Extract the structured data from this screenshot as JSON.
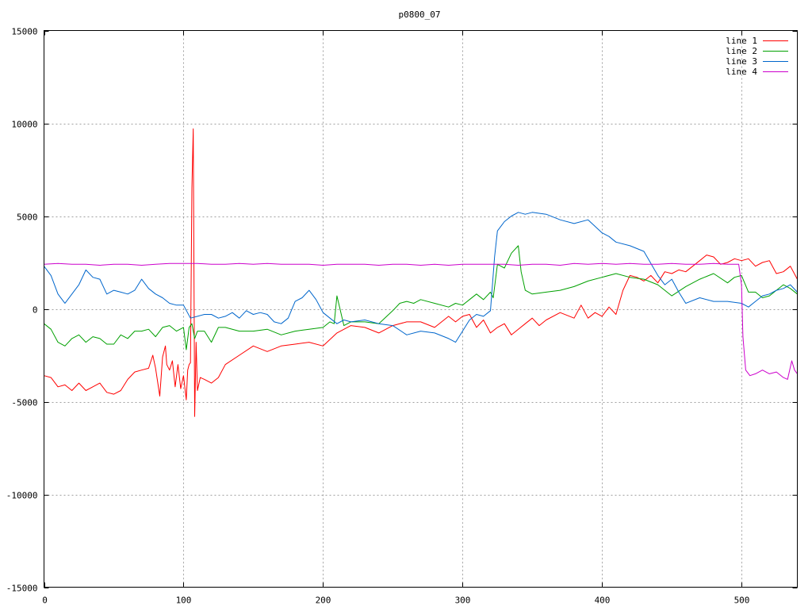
{
  "chart_data": {
    "type": "line",
    "title": "p0800_07",
    "xlabel": "",
    "ylabel": "",
    "xlim": [
      0,
      540
    ],
    "ylim": [
      -15000,
      15000
    ],
    "x_ticks": [
      0,
      100,
      200,
      300,
      400,
      500
    ],
    "y_ticks": [
      -15000,
      -10000,
      -5000,
      0,
      5000,
      10000,
      15000
    ],
    "grid": true,
    "legend_position": "top-right",
    "series": [
      {
        "name": "line 1",
        "color": "#ff0000",
        "x": [
          0,
          5,
          10,
          15,
          20,
          25,
          30,
          35,
          40,
          45,
          50,
          55,
          60,
          65,
          70,
          75,
          78,
          80,
          83,
          85,
          87,
          88,
          90,
          92,
          94,
          96,
          98,
          100,
          102,
          103,
          104,
          105,
          106,
          107,
          108,
          109,
          110,
          112,
          115,
          120,
          125,
          130,
          140,
          150,
          160,
          170,
          180,
          190,
          200,
          210,
          220,
          230,
          240,
          250,
          260,
          270,
          280,
          290,
          295,
          300,
          305,
          310,
          315,
          320,
          325,
          330,
          335,
          340,
          345,
          350,
          355,
          360,
          370,
          380,
          385,
          390,
          395,
          400,
          405,
          410,
          415,
          420,
          425,
          430,
          435,
          440,
          445,
          450,
          455,
          460,
          465,
          470,
          475,
          480,
          485,
          490,
          495,
          500,
          505,
          510,
          515,
          520,
          525,
          530,
          535,
          540
        ],
        "y": [
          -3600,
          -3700,
          -4200,
          -4100,
          -4400,
          -4000,
          -4400,
          -4200,
          -4000,
          -4500,
          -4600,
          -4400,
          -3800,
          -3400,
          -3300,
          -3200,
          -2500,
          -3200,
          -4700,
          -2600,
          -2000,
          -3000,
          -3300,
          -2800,
          -4200,
          -3000,
          -4300,
          -3600,
          -4900,
          -3300,
          -3000,
          -2900,
          6500,
          9700,
          -5800,
          -1800,
          -4400,
          -3700,
          -3800,
          -4000,
          -3700,
          -3000,
          -2500,
          -2000,
          -2300,
          -2000,
          -1900,
          -1800,
          -2000,
          -1300,
          -900,
          -1000,
          -1300,
          -900,
          -700,
          -700,
          -1000,
          -400,
          -700,
          -400,
          -300,
          -1000,
          -600,
          -1300,
          -1000,
          -800,
          -1400,
          -1100,
          -800,
          -500,
          -900,
          -600,
          -200,
          -500,
          200,
          -500,
          -200,
          -400,
          100,
          -300,
          1000,
          1800,
          1700,
          1500,
          1800,
          1400,
          2000,
          1900,
          2100,
          2000,
          2300,
          2600,
          2900,
          2800,
          2400,
          2500,
          2700,
          2600,
          2700,
          2300,
          2500,
          2600,
          1900,
          2000,
          2300,
          1600
        ]
      },
      {
        "name": "line 2",
        "color": "#00a000",
        "x": [
          0,
          5,
          10,
          15,
          20,
          25,
          30,
          35,
          40,
          45,
          50,
          55,
          60,
          65,
          70,
          75,
          80,
          85,
          90,
          95,
          100,
          102,
          104,
          106,
          108,
          110,
          115,
          120,
          125,
          130,
          140,
          150,
          160,
          170,
          180,
          190,
          200,
          205,
          208,
          210,
          215,
          220,
          230,
          240,
          250,
          255,
          260,
          265,
          270,
          280,
          290,
          295,
          300,
          305,
          310,
          315,
          320,
          322,
          325,
          330,
          335,
          340,
          342,
          345,
          350,
          360,
          370,
          380,
          390,
          400,
          410,
          420,
          430,
          440,
          450,
          460,
          470,
          480,
          490,
          495,
          500,
          505,
          510,
          515,
          520,
          525,
          530,
          535,
          540
        ],
        "y": [
          -800,
          -1100,
          -1800,
          -2000,
          -1600,
          -1400,
          -1800,
          -1500,
          -1600,
          -1900,
          -1900,
          -1400,
          -1600,
          -1200,
          -1200,
          -1100,
          -1500,
          -1000,
          -900,
          -1200,
          -1000,
          -2200,
          -1000,
          -800,
          -1600,
          -1200,
          -1200,
          -1800,
          -1000,
          -1000,
          -1200,
          -1200,
          -1100,
          -1400,
          -1200,
          -1100,
          -1000,
          -700,
          -800,
          700,
          -900,
          -700,
          -700,
          -800,
          -100,
          300,
          400,
          300,
          500,
          300,
          100,
          300,
          200,
          500,
          800,
          500,
          900,
          600,
          2400,
          2200,
          3000,
          3400,
          2000,
          1000,
          800,
          900,
          1000,
          1200,
          1500,
          1700,
          1900,
          1700,
          1600,
          1300,
          700,
          1200,
          1600,
          1900,
          1400,
          1700,
          1800,
          900,
          900,
          600,
          700,
          1000,
          1300,
          1100,
          800
        ]
      },
      {
        "name": "line 3",
        "color": "#0066cc",
        "x": [
          0,
          5,
          10,
          15,
          20,
          25,
          30,
          35,
          40,
          45,
          50,
          55,
          60,
          65,
          70,
          75,
          80,
          85,
          90,
          95,
          100,
          105,
          110,
          115,
          120,
          125,
          130,
          135,
          140,
          145,
          150,
          155,
          160,
          165,
          170,
          175,
          180,
          185,
          190,
          195,
          200,
          205,
          210,
          215,
          220,
          230,
          240,
          250,
          260,
          270,
          280,
          290,
          295,
          300,
          305,
          310,
          315,
          320,
          323,
          325,
          330,
          335,
          340,
          345,
          350,
          360,
          370,
          380,
          390,
          400,
          405,
          410,
          420,
          430,
          440,
          445,
          450,
          455,
          460,
          470,
          480,
          490,
          500,
          505,
          510,
          515,
          520,
          525,
          530,
          535,
          540
        ],
        "y": [
          2300,
          1800,
          800,
          300,
          800,
          1300,
          2100,
          1700,
          1600,
          800,
          1000,
          900,
          800,
          1000,
          1600,
          1100,
          800,
          600,
          300,
          200,
          200,
          -500,
          -400,
          -300,
          -300,
          -500,
          -400,
          -200,
          -500,
          -100,
          -300,
          -200,
          -300,
          -700,
          -800,
          -500,
          400,
          600,
          1000,
          500,
          -200,
          -500,
          -800,
          -600,
          -700,
          -600,
          -800,
          -900,
          -1400,
          -1200,
          -1300,
          -1600,
          -1800,
          -1200,
          -600,
          -300,
          -400,
          -100,
          2800,
          4200,
          4700,
          5000,
          5200,
          5100,
          5200,
          5100,
          4800,
          4600,
          4800,
          4100,
          3900,
          3600,
          3400,
          3100,
          1800,
          1300,
          1600,
          900,
          300,
          600,
          400,
          400,
          300,
          100,
          400,
          700,
          800,
          1000,
          1100,
          1300,
          900
        ]
      },
      {
        "name": "line 4",
        "color": "#cc00cc",
        "x": [
          0,
          10,
          20,
          30,
          40,
          50,
          60,
          70,
          80,
          90,
          100,
          110,
          120,
          130,
          140,
          150,
          160,
          170,
          180,
          190,
          200,
          210,
          220,
          230,
          240,
          250,
          260,
          270,
          280,
          290,
          300,
          310,
          320,
          330,
          340,
          350,
          360,
          370,
          380,
          390,
          400,
          410,
          420,
          430,
          440,
          450,
          460,
          470,
          480,
          490,
          498,
          500,
          501,
          503,
          506,
          510,
          515,
          520,
          525,
          530,
          533,
          536,
          538,
          540
        ],
        "y": [
          2400,
          2450,
          2400,
          2400,
          2350,
          2400,
          2400,
          2350,
          2400,
          2450,
          2450,
          2450,
          2400,
          2400,
          2450,
          2400,
          2450,
          2400,
          2400,
          2400,
          2350,
          2400,
          2400,
          2400,
          2350,
          2400,
          2400,
          2350,
          2400,
          2350,
          2400,
          2400,
          2400,
          2400,
          2350,
          2400,
          2400,
          2350,
          2450,
          2400,
          2450,
          2400,
          2450,
          2400,
          2400,
          2450,
          2400,
          2400,
          2450,
          2400,
          2400,
          1300,
          -1500,
          -3300,
          -3600,
          -3500,
          -3300,
          -3500,
          -3400,
          -3700,
          -3800,
          -2800,
          -3300,
          -3500
        ]
      }
    ]
  }
}
